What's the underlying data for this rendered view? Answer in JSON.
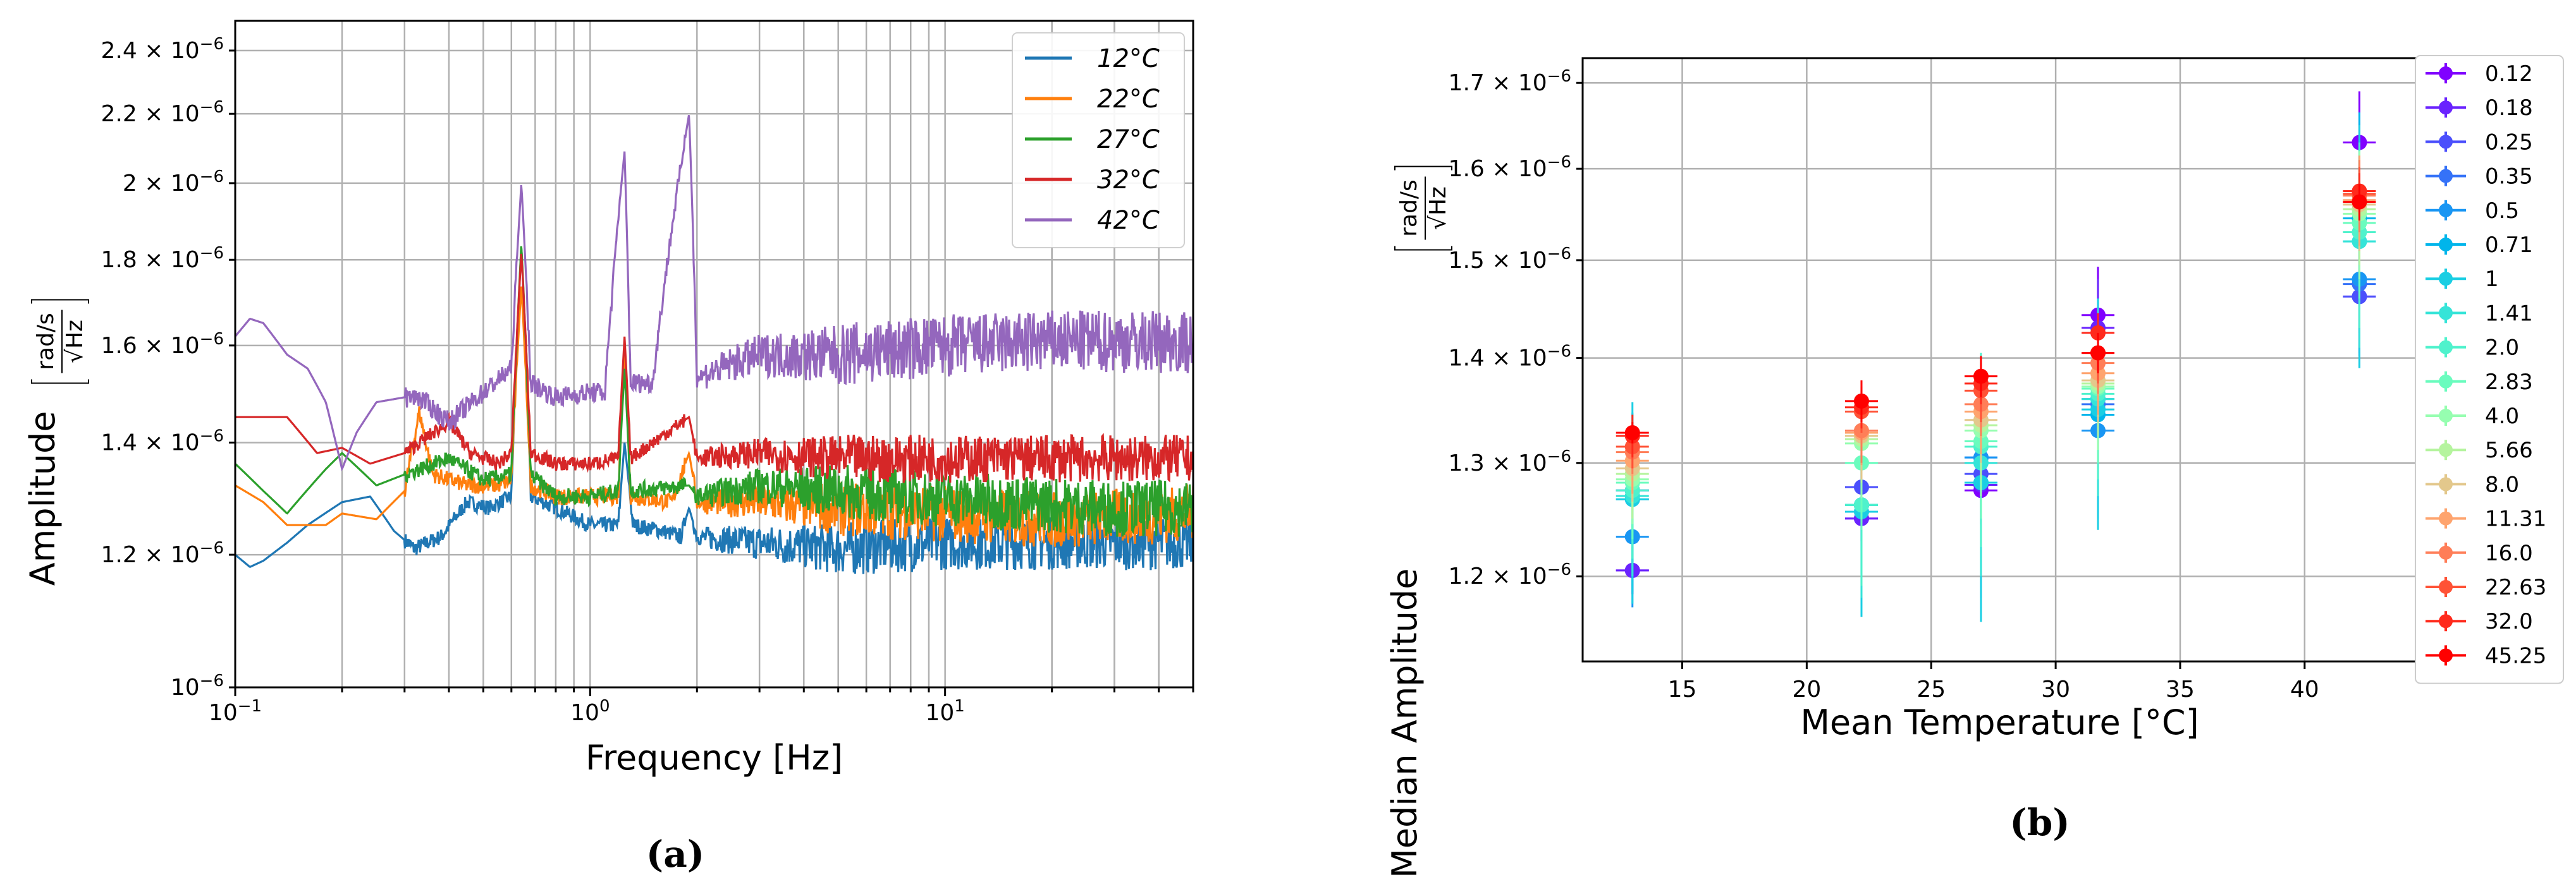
{
  "chart_data": [
    {
      "type": "line",
      "panel": "(a)",
      "xscale": "log",
      "yscale": "log",
      "xlabel": "Frequency [Hz]",
      "ylabel": "Amplitude",
      "ylabel_unit_num": "rad/s",
      "ylabel_unit_den": "√Hz",
      "xlim": [
        0.1,
        50
      ],
      "ylim": [
        1e-06,
        2.5e-06
      ],
      "grid": true,
      "legend_position": "top-right",
      "xticks": [
        {
          "v": 0.1,
          "base": "10",
          "exp": "−1"
        },
        {
          "v": 1,
          "base": "10",
          "exp": "0"
        },
        {
          "v": 10,
          "base": "10",
          "exp": "1"
        }
      ],
      "yticks": [
        {
          "v": 1e-06,
          "mant": "",
          "exp": "−6"
        },
        {
          "v": 1.2e-06,
          "mant": "1.2 × ",
          "exp": "−6"
        },
        {
          "v": 1.4e-06,
          "mant": "1.4 × ",
          "exp": "−6"
        },
        {
          "v": 1.6e-06,
          "mant": "1.6 × ",
          "exp": "−6"
        },
        {
          "v": 1.8e-06,
          "mant": "1.8 × ",
          "exp": "−6"
        },
        {
          "v": 2e-06,
          "mant": "2 × ",
          "exp": "−6"
        },
        {
          "v": 2.2e-06,
          "mant": "2.2 × ",
          "exp": "−6"
        },
        {
          "v": 2.4e-06,
          "mant": "2.4 × ",
          "exp": "−6"
        }
      ],
      "series": [
        {
          "name": "12",
          "color": "#1f77b4",
          "noise": 0.045,
          "points": [
            [
              0.1,
              1.2
            ],
            [
              0.11,
              1.18
            ],
            [
              0.12,
              1.19
            ],
            [
              0.14,
              1.22
            ],
            [
              0.16,
              1.25
            ],
            [
              0.2,
              1.29
            ],
            [
              0.24,
              1.3
            ],
            [
              0.28,
              1.24
            ],
            [
              0.32,
              1.21
            ],
            [
              0.38,
              1.23
            ],
            [
              0.45,
              1.29
            ],
            [
              0.52,
              1.28
            ],
            [
              0.6,
              1.3
            ],
            [
              0.64,
              1.84
            ],
            [
              0.68,
              1.3
            ],
            [
              0.8,
              1.28
            ],
            [
              1.0,
              1.25
            ],
            [
              1.2,
              1.25
            ],
            [
              1.25,
              1.4
            ],
            [
              1.32,
              1.25
            ],
            [
              1.6,
              1.24
            ],
            [
              1.8,
              1.23
            ],
            [
              1.9,
              1.28
            ],
            [
              2.0,
              1.23
            ],
            [
              3,
              1.22
            ],
            [
              5,
              1.21
            ],
            [
              10,
              1.22
            ],
            [
              20,
              1.22
            ],
            [
              50,
              1.22
            ]
          ]
        },
        {
          "name": "22",
          "color": "#ff7f0e",
          "noise": 0.05,
          "points": [
            [
              0.1,
              1.32
            ],
            [
              0.12,
              1.29
            ],
            [
              0.14,
              1.25
            ],
            [
              0.18,
              1.25
            ],
            [
              0.2,
              1.27
            ],
            [
              0.25,
              1.26
            ],
            [
              0.3,
              1.31
            ],
            [
              0.33,
              1.46
            ],
            [
              0.36,
              1.34
            ],
            [
              0.45,
              1.32
            ],
            [
              0.55,
              1.32
            ],
            [
              0.6,
              1.33
            ],
            [
              0.64,
              1.74
            ],
            [
              0.68,
              1.32
            ],
            [
              0.8,
              1.3
            ],
            [
              1.0,
              1.3
            ],
            [
              1.2,
              1.3
            ],
            [
              1.25,
              1.6
            ],
            [
              1.3,
              1.3
            ],
            [
              1.7,
              1.29
            ],
            [
              1.9,
              1.38
            ],
            [
              2.0,
              1.29
            ],
            [
              3,
              1.29
            ],
            [
              5,
              1.28
            ],
            [
              10,
              1.27
            ],
            [
              20,
              1.26
            ],
            [
              50,
              1.27
            ]
          ]
        },
        {
          "name": "27",
          "color": "#2ca02c",
          "noise": 0.05,
          "points": [
            [
              0.1,
              1.36
            ],
            [
              0.12,
              1.31
            ],
            [
              0.14,
              1.27
            ],
            [
              0.18,
              1.35
            ],
            [
              0.2,
              1.38
            ],
            [
              0.25,
              1.32
            ],
            [
              0.3,
              1.34
            ],
            [
              0.4,
              1.37
            ],
            [
              0.5,
              1.33
            ],
            [
              0.6,
              1.34
            ],
            [
              0.64,
              1.84
            ],
            [
              0.68,
              1.34
            ],
            [
              0.8,
              1.3
            ],
            [
              1.0,
              1.3
            ],
            [
              1.2,
              1.31
            ],
            [
              1.25,
              1.55
            ],
            [
              1.3,
              1.31
            ],
            [
              1.9,
              1.32
            ],
            [
              2.0,
              1.3
            ],
            [
              3,
              1.32
            ],
            [
              5,
              1.31
            ],
            [
              8,
              1.3
            ],
            [
              15,
              1.29
            ],
            [
              30,
              1.28
            ],
            [
              50,
              1.28
            ]
          ]
        },
        {
          "name": "32",
          "color": "#d62728",
          "noise": 0.045,
          "points": [
            [
              0.1,
              1.45
            ],
            [
              0.14,
              1.45
            ],
            [
              0.17,
              1.38
            ],
            [
              0.2,
              1.39
            ],
            [
              0.24,
              1.36
            ],
            [
              0.3,
              1.38
            ],
            [
              0.4,
              1.44
            ],
            [
              0.46,
              1.38
            ],
            [
              0.55,
              1.36
            ],
            [
              0.6,
              1.38
            ],
            [
              0.64,
              1.82
            ],
            [
              0.68,
              1.38
            ],
            [
              0.8,
              1.36
            ],
            [
              1.0,
              1.36
            ],
            [
              1.2,
              1.37
            ],
            [
              1.25,
              1.62
            ],
            [
              1.3,
              1.37
            ],
            [
              1.9,
              1.45
            ],
            [
              2.0,
              1.37
            ],
            [
              3,
              1.38
            ],
            [
              5,
              1.37
            ],
            [
              10,
              1.37
            ],
            [
              20,
              1.37
            ],
            [
              50,
              1.37
            ]
          ]
        },
        {
          "name": "42",
          "color": "#9467bd",
          "noise": 0.07,
          "points": [
            [
              0.1,
              1.62
            ],
            [
              0.11,
              1.66
            ],
            [
              0.12,
              1.65
            ],
            [
              0.14,
              1.58
            ],
            [
              0.16,
              1.55
            ],
            [
              0.18,
              1.48
            ],
            [
              0.2,
              1.35
            ],
            [
              0.22,
              1.42
            ],
            [
              0.25,
              1.48
            ],
            [
              0.3,
              1.49
            ],
            [
              0.33,
              1.49
            ],
            [
              0.4,
              1.44
            ],
            [
              0.5,
              1.5
            ],
            [
              0.6,
              1.55
            ],
            [
              0.64,
              2.0
            ],
            [
              0.68,
              1.52
            ],
            [
              0.8,
              1.49
            ],
            [
              1.0,
              1.5
            ],
            [
              1.1,
              1.5
            ],
            [
              1.25,
              2.09
            ],
            [
              1.3,
              1.52
            ],
            [
              1.5,
              1.52
            ],
            [
              1.9,
              2.2
            ],
            [
              2.0,
              1.53
            ],
            [
              2.5,
              1.56
            ],
            [
              3,
              1.58
            ],
            [
              5,
              1.58
            ],
            [
              10,
              1.6
            ],
            [
              20,
              1.61
            ],
            [
              50,
              1.61
            ]
          ]
        }
      ]
    },
    {
      "type": "scatter",
      "panel": "(b)",
      "yscale": "log",
      "xlabel": "Mean Temperature [°C]",
      "ylabel": "Median Amplitude",
      "ylabel_unit_num": "rad/s",
      "ylabel_unit_den": "√Hz",
      "xlim": [
        11,
        44.5
      ],
      "ylim": [
        1.13e-06,
        1.73e-06
      ],
      "grid": true,
      "legend_position": "outside-right",
      "xticks": [
        15,
        20,
        25,
        30,
        35,
        40
      ],
      "yticks": [
        {
          "v": 1.2e-06,
          "mant": "1.2 × ",
          "exp": "−6"
        },
        {
          "v": 1.3e-06,
          "mant": "1.3 × ",
          "exp": "−6"
        },
        {
          "v": 1.4e-06,
          "mant": "1.4 × ",
          "exp": "−6"
        },
        {
          "v": 1.5e-06,
          "mant": "1.5 × ",
          "exp": "−6"
        },
        {
          "v": 1.6e-06,
          "mant": "1.6 × ",
          "exp": "−6"
        },
        {
          "v": 1.7e-06,
          "mant": "1.7 × ",
          "exp": "−6"
        }
      ],
      "temperatures": [
        13.0,
        22.2,
        27.0,
        31.7,
        42.2
      ],
      "series": [
        {
          "name": "0.12",
          "color": "#8000ff",
          "values": [
            1.205,
            1.25,
            1.275,
            1.443,
            1.63
          ],
          "err": [
            0.02,
            0.02,
            0.03,
            0.05,
            0.06
          ]
        },
        {
          "name": "0.18",
          "color": "#6a23fe",
          "values": [
            1.205,
            1.25,
            1.28,
            1.43,
            1.462
          ],
          "err": [
            0.02,
            0.02,
            0.03,
            0.05,
            0.06
          ]
        },
        {
          "name": "0.25",
          "color": "#4b4ffc",
          "values": [
            1.275,
            1.278,
            1.29,
            1.36,
            1.462
          ],
          "err": [
            0.03,
            0.03,
            0.04,
            0.05,
            0.06
          ]
        },
        {
          "name": "0.35",
          "color": "#3572f8",
          "values": [
            1.275,
            1.262,
            1.305,
            1.355,
            1.475
          ],
          "err": [
            0.04,
            0.04,
            0.06,
            0.06,
            0.07
          ]
        },
        {
          "name": "0.5",
          "color": "#1996f3",
          "values": [
            1.234,
            1.262,
            1.305,
            1.33,
            1.48
          ],
          "err": [
            0.06,
            0.06,
            0.08,
            0.08,
            0.09
          ]
        },
        {
          "name": "0.71",
          "color": "#00b5eb",
          "values": [
            1.267,
            1.262,
            1.282,
            1.345,
            1.545
          ],
          "err": [
            0.08,
            0.07,
            0.1,
            0.09,
            0.12
          ]
        },
        {
          "name": "1",
          "color": "#1acee3",
          "values": [
            1.267,
            1.256,
            1.282,
            1.35,
            1.52
          ],
          "err": [
            0.09,
            0.09,
            0.12,
            0.11,
            0.13
          ]
        },
        {
          "name": "1.41",
          "color": "#35e4d8",
          "values": [
            1.27,
            1.262,
            1.3,
            1.36,
            1.52
          ],
          "err": [
            0.07,
            0.08,
            0.1,
            0.09,
            0.11
          ]
        },
        {
          "name": "2.0",
          "color": "#4ff2cc",
          "values": [
            1.275,
            1.262,
            1.315,
            1.365,
            1.53
          ],
          "err": [
            0.06,
            0.07,
            0.09,
            0.08,
            0.1
          ]
        },
        {
          "name": "2.83",
          "color": "#6afcbe",
          "values": [
            1.282,
            1.3,
            1.32,
            1.37,
            1.54
          ],
          "err": [
            0.05,
            0.06,
            0.07,
            0.07,
            0.08
          ]
        },
        {
          "name": "4.0",
          "color": "#96feb0",
          "values": [
            1.285,
            1.318,
            1.33,
            1.372,
            1.55
          ],
          "err": [
            0.04,
            0.05,
            0.06,
            0.06,
            0.07
          ]
        },
        {
          "name": "5.66",
          "color": "#b5f49e",
          "values": [
            1.29,
            1.322,
            1.335,
            1.375,
            1.555
          ],
          "err": [
            0.04,
            0.04,
            0.05,
            0.05,
            0.06
          ]
        },
        {
          "name": "8.0",
          "color": "#e3c88c",
          "values": [
            1.295,
            1.325,
            1.34,
            1.378,
            1.56
          ],
          "err": [
            0.03,
            0.04,
            0.04,
            0.04,
            0.05
          ]
        },
        {
          "name": "11.31",
          "color": "#fea46e",
          "values": [
            1.302,
            1.328,
            1.348,
            1.385,
            1.565
          ],
          "err": [
            0.03,
            0.03,
            0.04,
            0.04,
            0.05
          ]
        },
        {
          "name": "16.0",
          "color": "#ff7e58",
          "values": [
            1.31,
            1.33,
            1.355,
            1.395,
            1.57
          ],
          "err": [
            0.02,
            0.03,
            0.03,
            0.03,
            0.04
          ]
        },
        {
          "name": "22.63",
          "color": "#ff5236",
          "values": [
            1.315,
            1.348,
            1.368,
            1.405,
            1.572
          ],
          "err": [
            0.02,
            0.02,
            0.03,
            0.03,
            0.03
          ]
        },
        {
          "name": "32.0",
          "color": "#ff2a1c",
          "values": [
            1.325,
            1.352,
            1.375,
            1.425,
            1.575
          ],
          "err": [
            0.02,
            0.02,
            0.02,
            0.02,
            0.02
          ]
        },
        {
          "name": "45.25",
          "color": "#ff0000",
          "values": [
            1.328,
            1.358,
            1.382,
            1.405,
            1.563
          ],
          "err": [
            0.01,
            0.02,
            0.02,
            0.02,
            0.02
          ]
        }
      ]
    }
  ],
  "captions": {
    "a": "(a)",
    "b": "(b)"
  },
  "legend_a_unit": "°C"
}
